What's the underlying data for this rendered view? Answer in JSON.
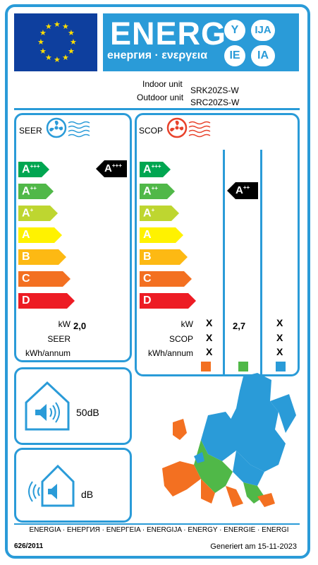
{
  "header": {
    "energy_title": "ENERG",
    "energy_subtitle": "енергия · ενεργεια",
    "badges": [
      "Y",
      "IJA",
      "IE",
      "IA"
    ]
  },
  "units": {
    "indoor_label": "Indoor unit",
    "indoor_model": "SRK20ZS-W",
    "outdoor_label": "Outdoor unit",
    "outdoor_model": "SRC20ZS-W"
  },
  "cooling": {
    "title": "SEER",
    "classes": [
      {
        "letter": "A",
        "sup": "+++",
        "color": "#00a651"
      },
      {
        "letter": "A",
        "sup": "++",
        "color": "#50b848"
      },
      {
        "letter": "A",
        "sup": "+",
        "color": "#bed630"
      },
      {
        "letter": "A",
        "sup": "",
        "color": "#fff200"
      },
      {
        "letter": "B",
        "sup": "",
        "color": "#fdb913"
      },
      {
        "letter": "C",
        "sup": "",
        "color": "#f37021"
      },
      {
        "letter": "D",
        "sup": "",
        "color": "#ed1c24"
      }
    ],
    "rating_letter": "A",
    "rating_sup": "+++",
    "kw_label": "kW",
    "kw_value": "2,0",
    "seer_label": "SEER",
    "kwh_label": "kWh/annum"
  },
  "heating": {
    "title": "SCOP",
    "rating_letter": "A",
    "rating_sup": "++",
    "kw_label": "kW",
    "scop_label": "SCOP",
    "kwh_label": "kWh/annum",
    "col1": [
      "X",
      "X",
      "X"
    ],
    "col2_value": "2,7",
    "col3": [
      "X",
      "X",
      "X"
    ],
    "zone_colors": [
      "#f37021",
      "#50b848",
      "#2a9bd8"
    ]
  },
  "noise": {
    "indoor": "50dB",
    "outdoor": "dB"
  },
  "footer": {
    "languages": "ENERGIA · ЕНЕРГИЯ · ΕΝΕΡΓΕΙΑ · ENERGIJA · ENERGY · ENERGIE · ENERGI",
    "regulation": "626/2011",
    "generated": "Generiert am 15-11-2023"
  }
}
